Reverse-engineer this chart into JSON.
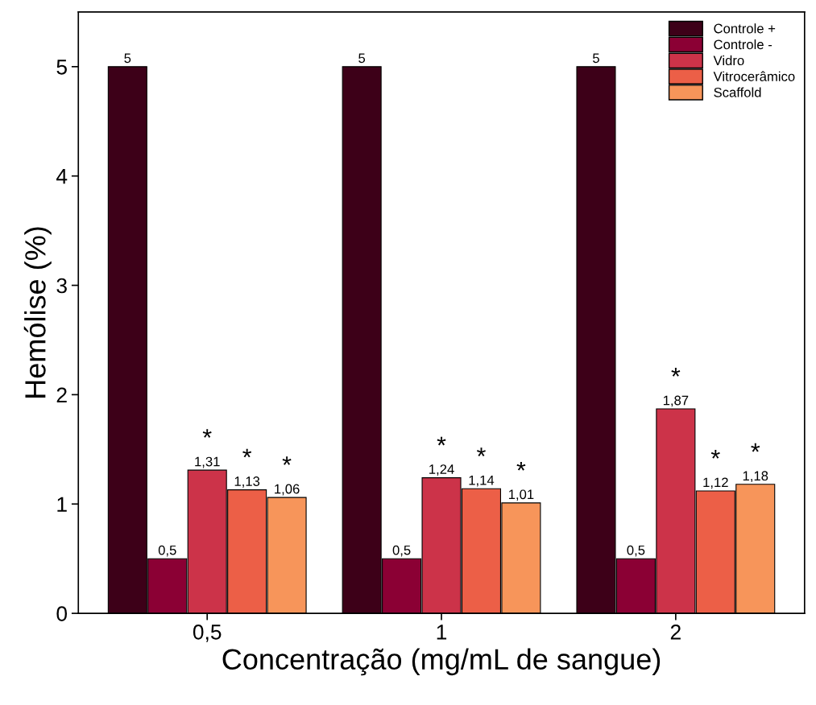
{
  "chart_data": {
    "type": "bar",
    "xlabel": "Concentração (mg/mL de sangue)",
    "ylabel": "Hemólise (%)",
    "categories": [
      "0,5",
      "1",
      "2"
    ],
    "series": [
      {
        "name": "Controle +",
        "color": "#3d0018",
        "values": [
          5,
          5,
          5
        ],
        "value_labels": [
          "5",
          "5",
          "5"
        ]
      },
      {
        "name": "Controle -",
        "color": "#8b0034",
        "values": [
          0.5,
          0.5,
          0.5
        ],
        "value_labels": [
          "0,5",
          "0,5",
          "0,5"
        ]
      },
      {
        "name": "Vidro",
        "color": "#cc3349",
        "values": [
          1.31,
          1.24,
          1.87
        ],
        "value_labels": [
          "1,31",
          "1,24",
          "1,87"
        ]
      },
      {
        "name": "Vitrocerâmico",
        "color": "#ec5f47",
        "values": [
          1.13,
          1.14,
          1.12
        ],
        "value_labels": [
          "1,13",
          "1,14",
          "1,12"
        ]
      },
      {
        "name": "Scaffold",
        "color": "#f7955a",
        "values": [
          1.06,
          1.01,
          1.18
        ],
        "value_labels": [
          "1,06",
          "1,01",
          "1,18"
        ]
      }
    ],
    "ylim": [
      0,
      5.5
    ],
    "yticks": [
      0,
      1,
      2,
      3,
      4,
      5
    ],
    "legend": "top right",
    "grid": false,
    "annotations": [
      "*",
      "*",
      "*",
      "*",
      "*",
      "*",
      "*",
      "*",
      "*"
    ]
  }
}
